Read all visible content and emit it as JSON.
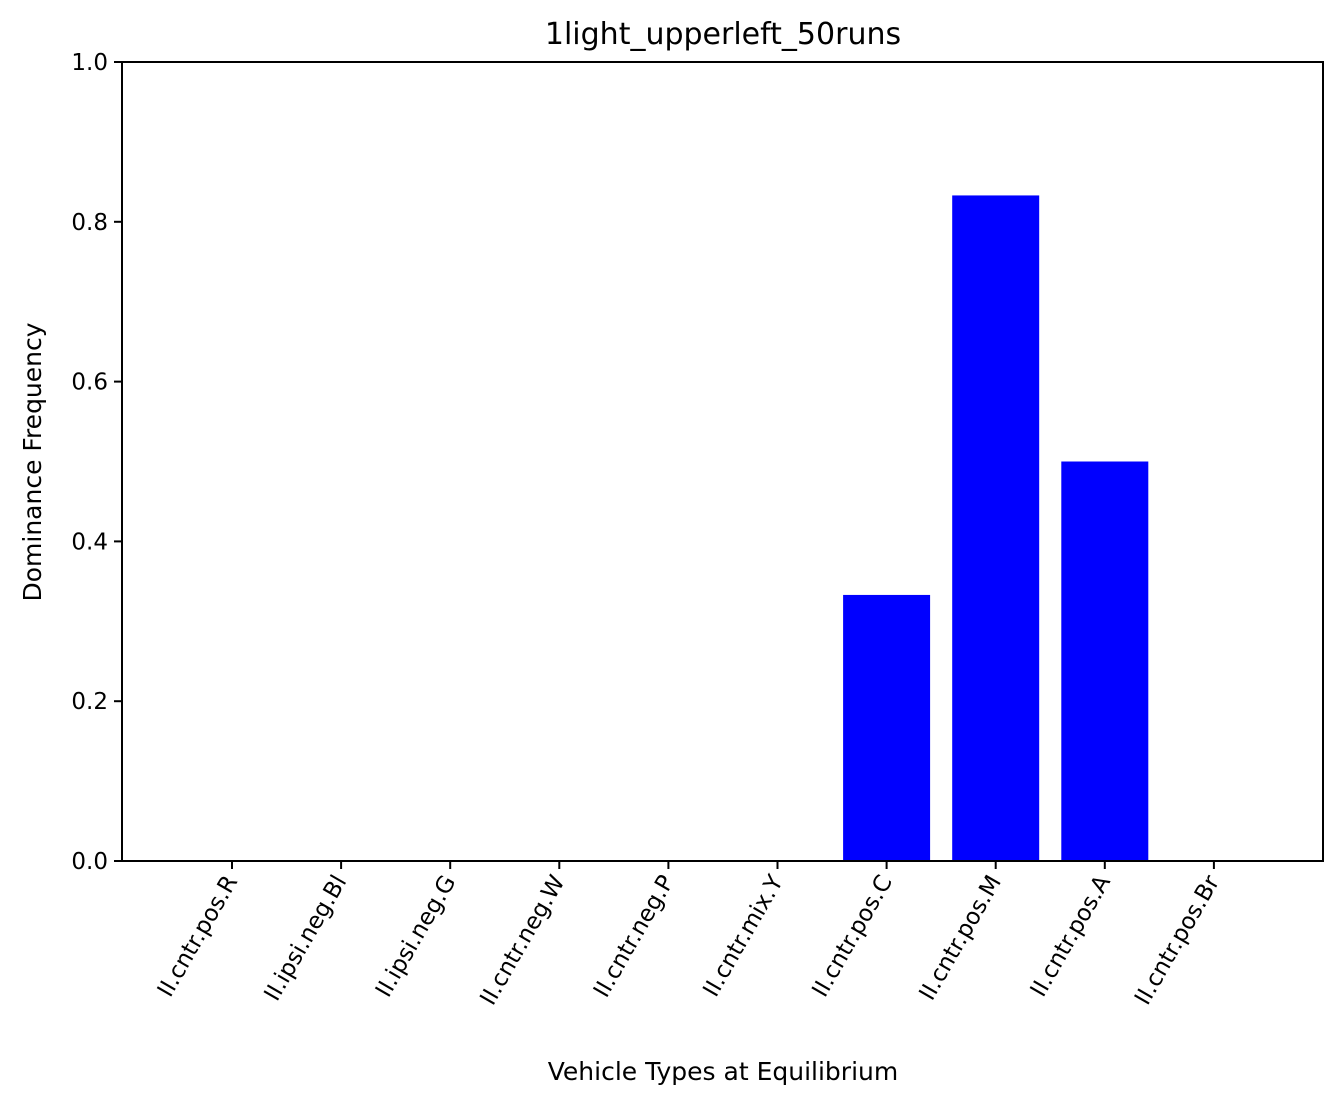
{
  "chart_data": {
    "type": "bar",
    "title": "1light_upperleft_50runs",
    "xlabel": "Vehicle Types at Equilibrium",
    "ylabel": "Dominance Frequency",
    "categories": [
      "II.cntr.pos.R",
      "II.ipsi.neg.Bl",
      "II.ipsi.neg.G",
      "II.cntr.neg.W",
      "II.cntr.neg.P",
      "II.cntr.mix.Y",
      "II.cntr.pos.C",
      "II.cntr.pos.M",
      "II.cntr.pos.A",
      "II.cntr.pos.Br"
    ],
    "values": [
      0,
      0,
      0,
      0,
      0,
      0,
      0.333,
      0.833,
      0.5,
      0
    ],
    "ylim": [
      0,
      1.0
    ],
    "yticks": [
      "0.0",
      "0.2",
      "0.4",
      "0.6",
      "0.8",
      "1.0"
    ],
    "bar_color": "#0000ff",
    "grid": false
  }
}
